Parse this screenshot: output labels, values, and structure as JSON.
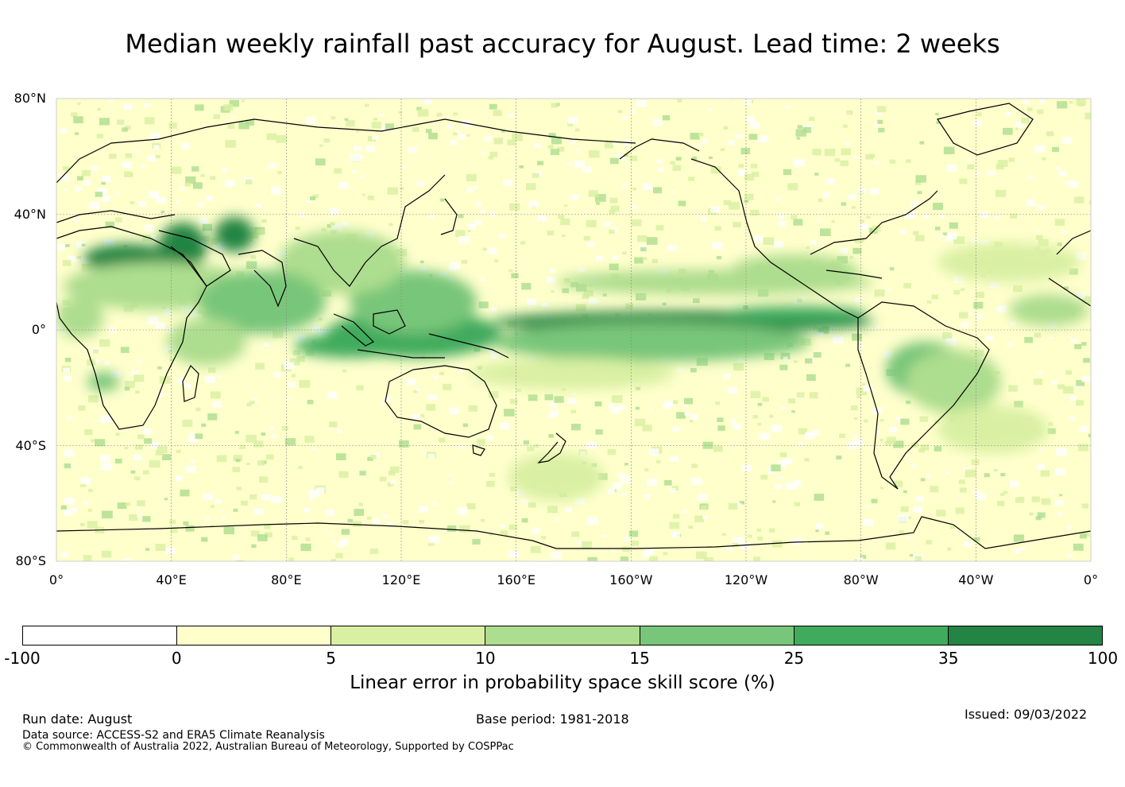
{
  "title": "Median weekly rainfall past accuracy for August. Lead time: 2 weeks",
  "map": {
    "lat_labels": [
      "80°N",
      "40°N",
      "0°",
      "40°S",
      "80°S"
    ],
    "lon_labels": [
      "0°",
      "40°E",
      "80°E",
      "120°E",
      "160°E",
      "160°W",
      "120°W",
      "80°W",
      "40°W",
      "0°"
    ]
  },
  "colorbar": {
    "label": "Linear error in probability space skill score (%)",
    "ticks": [
      "-100",
      "0",
      "5",
      "10",
      "15",
      "25",
      "35",
      "100"
    ],
    "colors": [
      "#ffffff",
      "#ffffcc",
      "#d9f0a3",
      "#addd8e",
      "#78c679",
      "#41ab5d",
      "#238443"
    ]
  },
  "footer": {
    "run_date": "Run date: August",
    "base_period": "Base period: 1981-2018",
    "issued": "Issued: 09/03/2022",
    "data_source": "Data source: ACCESS-S2 and ERA5 Climate Reanalysis",
    "copyright": "© Commonwealth of Australia 2022, Australian Bureau of Meteorology, Supported by COSPPac"
  }
}
